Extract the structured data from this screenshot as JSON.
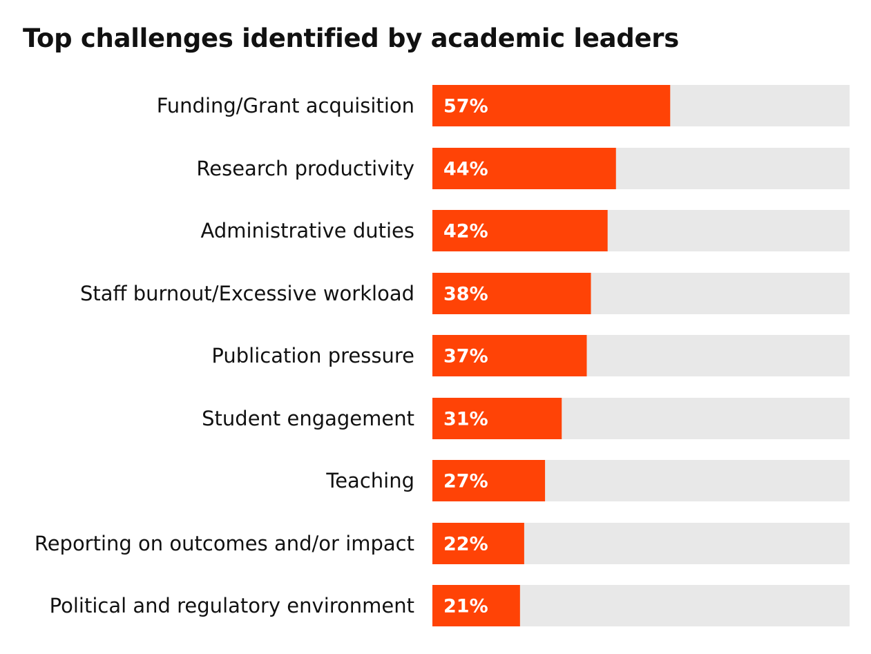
{
  "chart_data": {
    "type": "bar",
    "orientation": "horizontal",
    "title": "Top challenges identified by academic leaders",
    "categories": [
      "Funding/Grant acquisition",
      "Research productivity",
      "Administrative duties",
      "Staff burnout/Excessive workload",
      "Publication pressure",
      "Student engagement",
      "Teaching",
      "Reporting on outcomes and/or impact",
      "Political and regulatory environment"
    ],
    "values": [
      57,
      44,
      42,
      38,
      37,
      31,
      27,
      22,
      21
    ],
    "value_labels": [
      "57%",
      "44%",
      "42%",
      "38%",
      "37%",
      "31%",
      "27%",
      "22%",
      "21%"
    ],
    "xlim": [
      0,
      100
    ],
    "unit": "%",
    "colors": {
      "bar": "#ff4306",
      "track": "#e8e8e8",
      "value_text": "#ffffff",
      "label_text": "#111111"
    },
    "grid": false,
    "legend": "none"
  }
}
